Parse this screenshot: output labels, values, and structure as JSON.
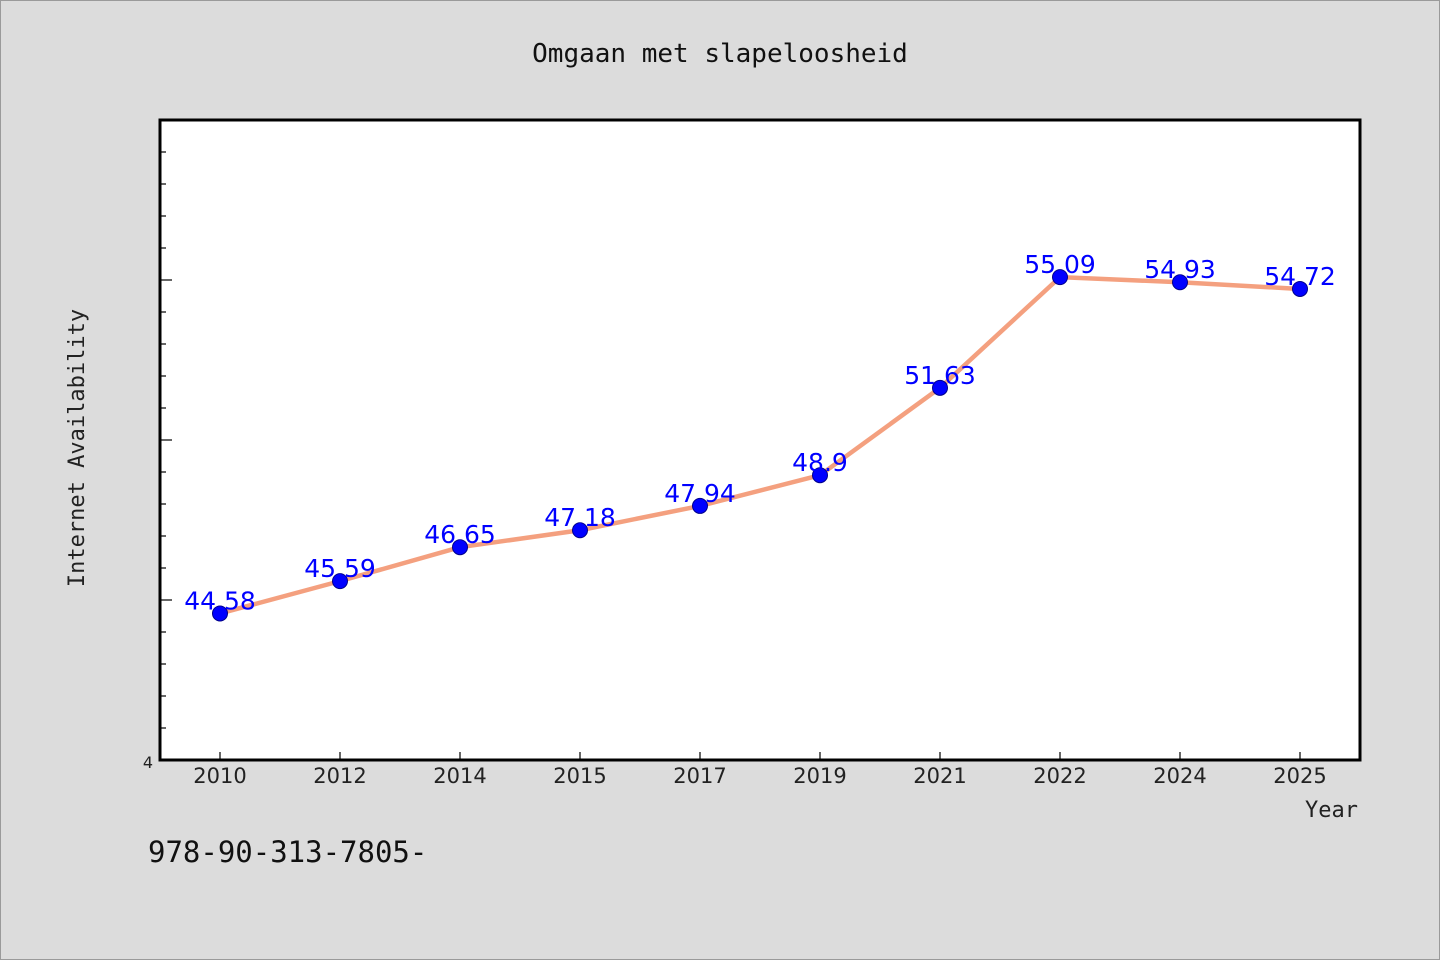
{
  "chart_data": {
    "type": "line",
    "title": "Omgaan met slapeloosheid",
    "xlabel": "Year",
    "ylabel": "Internet Availability",
    "categories": [
      "2010",
      "2012",
      "2014",
      "2015",
      "2017",
      "2019",
      "2021",
      "2022",
      "2024",
      "2025"
    ],
    "values": [
      44.58,
      45.59,
      46.65,
      47.18,
      47.94,
      48.9,
      51.63,
      55.09,
      54.93,
      54.72
    ],
    "data_labels": [
      "44.58",
      "45.59",
      "46.65",
      "47.18",
      "47.94",
      "48.9",
      "51.63",
      "55.09",
      "54.93",
      "54.72"
    ],
    "ylim": [
      40,
      60
    ],
    "y_tick_labels": [
      "4"
    ],
    "grid": false,
    "legend": "none",
    "colors": {
      "line": "#f4a07f",
      "marker": "#0000ff",
      "data_label": "#0000ff",
      "background": "#dcdcdc",
      "plot_background": "#ffffff"
    }
  },
  "footer": {
    "text": "978-90-313-7805-"
  }
}
